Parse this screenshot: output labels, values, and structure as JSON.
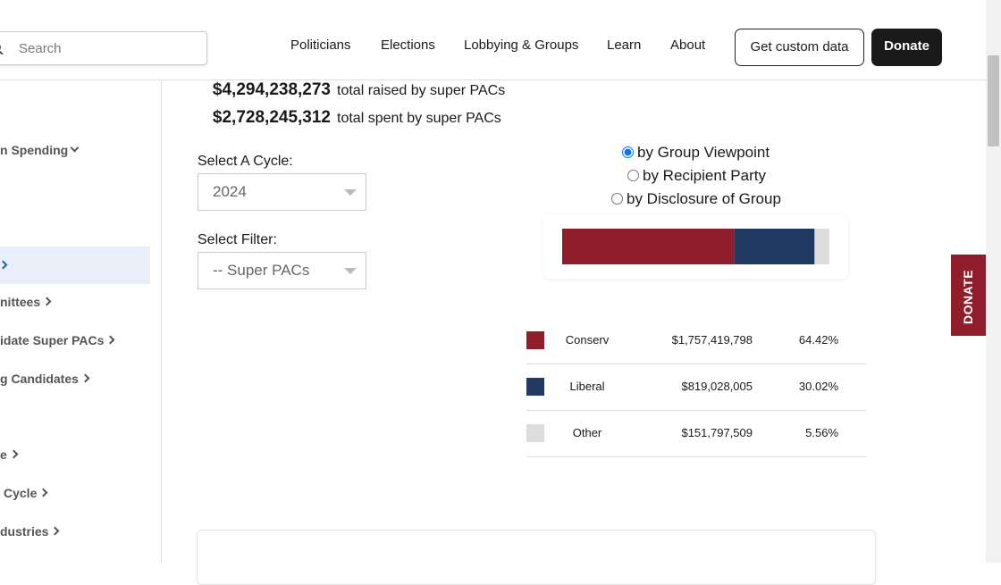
{
  "header": {
    "search_placeholder": "Search",
    "nav": [
      "Politicians",
      "Elections",
      "Lobbying & Groups",
      "Learn",
      "About"
    ],
    "buttons": [
      "Get custom data",
      "Donate"
    ]
  },
  "sidebar": {
    "items": [
      "n Spending",
      "nittees",
      "idate Super PACs",
      "g Candidates",
      "e",
      "Cycle",
      "dustries"
    ]
  },
  "totals": [
    {
      "amount": "$4,294,238,273",
      "label": "total raised by super PACs"
    },
    {
      "amount": "$2,728,245,312",
      "label": "total spent by super PACs"
    }
  ],
  "filters": {
    "cycle_label": "Select A Cycle:",
    "cycle_value": "2024",
    "filter_label": "Select Filter:",
    "filter_value": "-- Super PACs"
  },
  "view_options": {
    "options": [
      "by Group Viewpoint",
      "by Recipient Party",
      "by Disclosure of Group"
    ],
    "selected": 0
  },
  "breakdown": {
    "categories": [
      "Conserv",
      "Liberal",
      "Other"
    ],
    "colors": [
      "#8f1d2a",
      "#213a63",
      "#dcdcdc"
    ],
    "amounts": [
      "$1,757,419,798",
      "$819,028,005",
      "$151,797,509"
    ],
    "values": [
      64.42,
      30.02,
      5.56
    ],
    "value_labels": [
      "64.42%",
      "30.02%",
      "5.56%"
    ]
  },
  "donate_tab": "DONATE"
}
